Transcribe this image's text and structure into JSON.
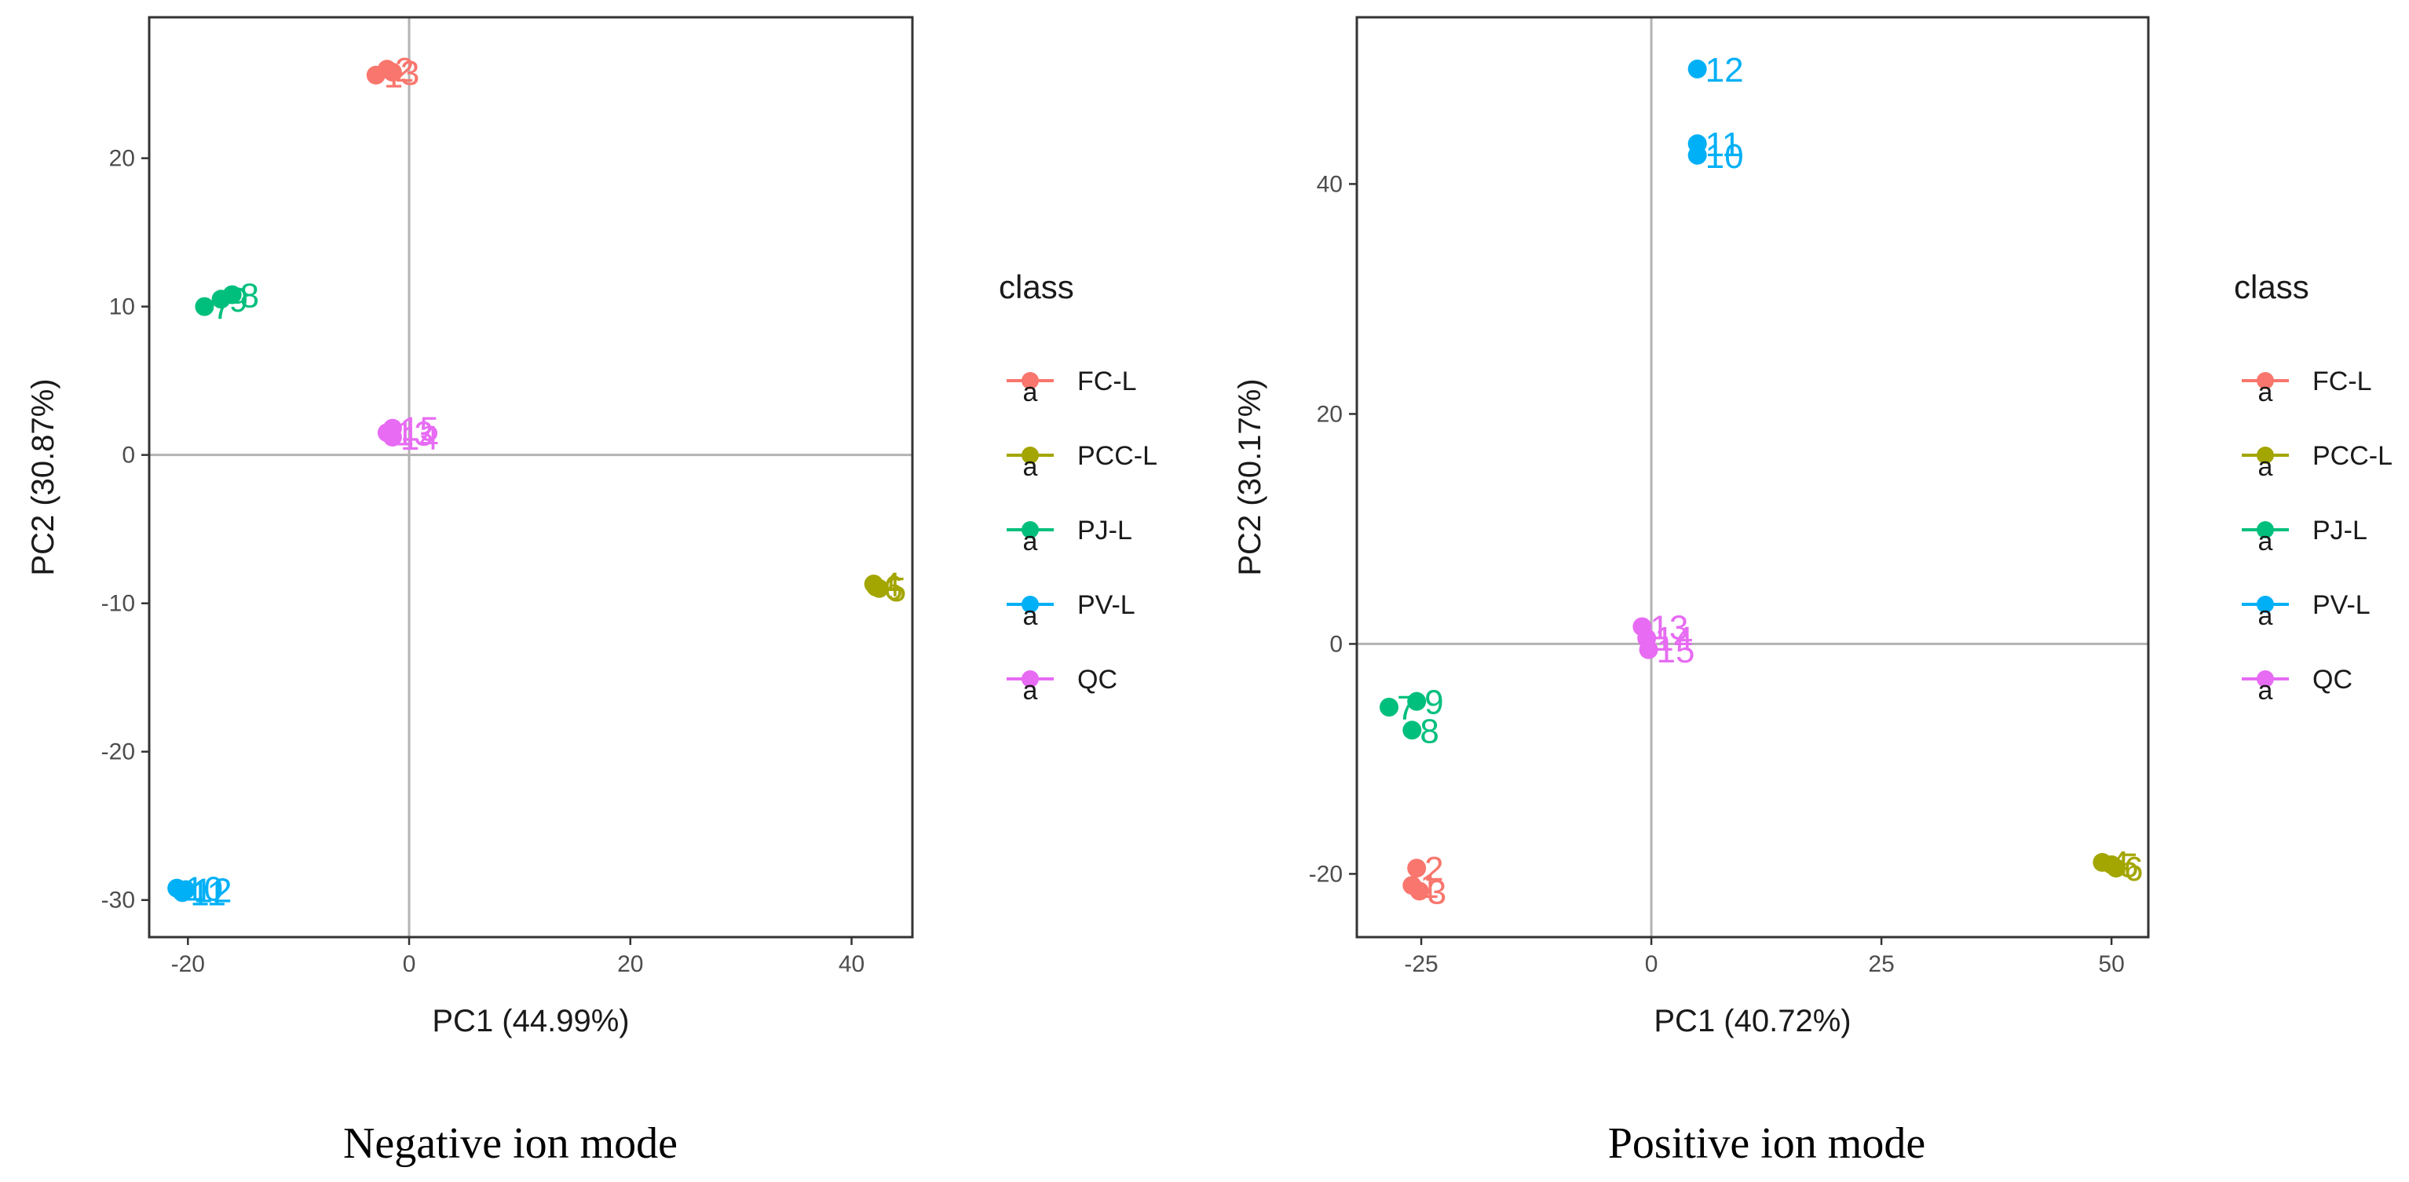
{
  "chart_data": [
    {
      "type": "scatter",
      "caption": "Negative ion mode",
      "xlabel": "PC1 (44.99%)",
      "ylabel": "PC2 (30.87%)",
      "xlim": [
        -23.5,
        45.5
      ],
      "ylim": [
        -32.5,
        29.5
      ],
      "xticks": [
        -20,
        0,
        20,
        40
      ],
      "yticks": [
        -30,
        -20,
        -10,
        0,
        10,
        20
      ],
      "legend_title": "class",
      "legend_marker": "a",
      "series": [
        {
          "name": "FC-L",
          "color": "#F8766D",
          "points": [
            {
              "x": -3,
              "y": 25.6,
              "label": "1"
            },
            {
              "x": -2,
              "y": 26.0,
              "label": "2"
            },
            {
              "x": -1.5,
              "y": 25.8,
              "label": "3"
            }
          ]
        },
        {
          "name": "PCC-L",
          "color": "#A3A500",
          "points": [
            {
              "x": 42,
              "y": -8.7,
              "label": "4"
            },
            {
              "x": 42.5,
              "y": -9.0,
              "label": "5"
            },
            {
              "x": 42.2,
              "y": -8.9,
              "label": "6"
            }
          ]
        },
        {
          "name": "PJ-L",
          "color": "#00BF7D",
          "points": [
            {
              "x": -18.5,
              "y": 10.0,
              "label": "7"
            },
            {
              "x": -16,
              "y": 10.8,
              "label": "8"
            },
            {
              "x": -17,
              "y": 10.5,
              "label": "9"
            }
          ]
        },
        {
          "name": "PV-L",
          "color": "#00B0F6",
          "points": [
            {
              "x": -21,
              "y": -29.2,
              "label": "10"
            },
            {
              "x": -20.5,
              "y": -29.5,
              "label": "11"
            },
            {
              "x": -20.2,
              "y": -29.3,
              "label": "12"
            }
          ]
        },
        {
          "name": "QC",
          "color": "#E76BF3",
          "points": [
            {
              "x": -2,
              "y": 1.5,
              "label": "13"
            },
            {
              "x": -1.5,
              "y": 1.2,
              "label": "14"
            },
            {
              "x": -1.5,
              "y": 1.8,
              "label": "15"
            }
          ]
        }
      ]
    },
    {
      "type": "scatter",
      "caption": "Positive ion mode",
      "xlabel": "PC1 (40.72%)",
      "ylabel": "PC2 (30.17%)",
      "xlim": [
        -32.0,
        54.0
      ],
      "ylim": [
        -25.5,
        54.5
      ],
      "xticks": [
        -25,
        0,
        25,
        50
      ],
      "yticks": [
        -20,
        0,
        20,
        40
      ],
      "legend_title": "class",
      "legend_marker": "a",
      "series": [
        {
          "name": "FC-L",
          "color": "#F8766D",
          "points": [
            {
              "x": -26,
              "y": -21.0,
              "label": "1"
            },
            {
              "x": -25.5,
              "y": -19.5,
              "label": "2"
            },
            {
              "x": -25.2,
              "y": -21.5,
              "label": "3"
            }
          ]
        },
        {
          "name": "PCC-L",
          "color": "#A3A500",
          "points": [
            {
              "x": 49,
              "y": -19.0,
              "label": "4"
            },
            {
              "x": 50,
              "y": -19.2,
              "label": "5"
            },
            {
              "x": 50.5,
              "y": -19.5,
              "label": "6"
            }
          ]
        },
        {
          "name": "PJ-L",
          "color": "#00BF7D",
          "points": [
            {
              "x": -28.5,
              "y": -5.5,
              "label": "7"
            },
            {
              "x": -26,
              "y": -7.5,
              "label": "8"
            },
            {
              "x": -25.5,
              "y": -5.0,
              "label": "9"
            }
          ]
        },
        {
          "name": "PV-L",
          "color": "#00B0F6",
          "points": [
            {
              "x": 5,
              "y": 42.5,
              "label": "10"
            },
            {
              "x": 5,
              "y": 43.5,
              "label": "11"
            },
            {
              "x": 5,
              "y": 50.0,
              "label": "12"
            }
          ]
        },
        {
          "name": "QC",
          "color": "#E76BF3",
          "points": [
            {
              "x": -1,
              "y": 1.5,
              "label": "13"
            },
            {
              "x": -0.5,
              "y": 0.5,
              "label": "14"
            },
            {
              "x": -0.3,
              "y": -0.5,
              "label": "15"
            }
          ]
        }
      ]
    }
  ]
}
